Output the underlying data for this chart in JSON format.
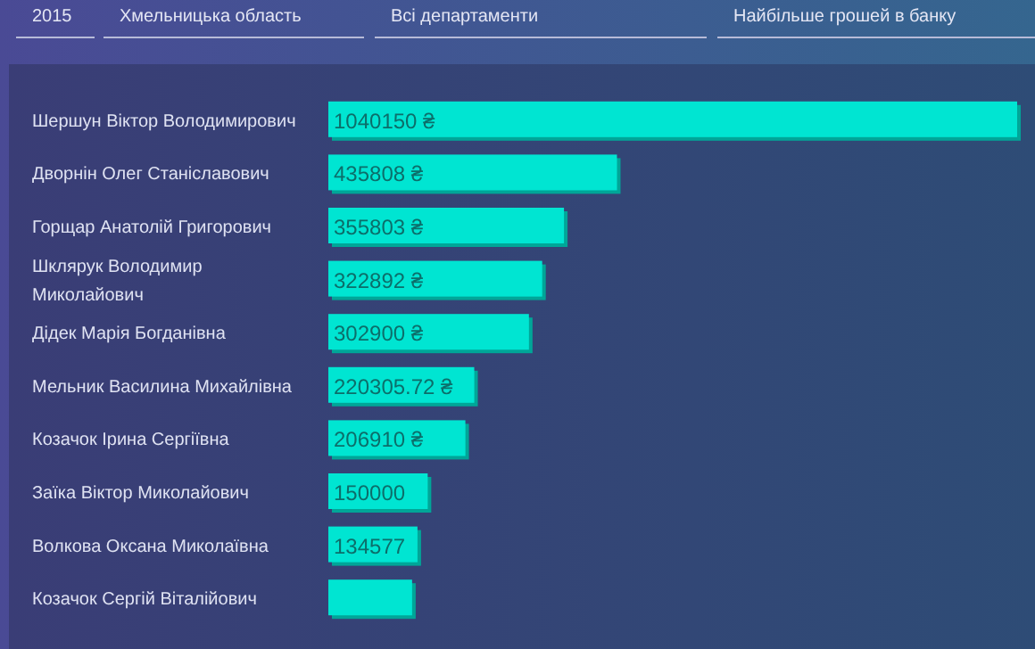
{
  "chart_data": {
    "type": "bar",
    "orientation": "horizontal",
    "annotations": [
      "2015",
      "Хмельницька область",
      "Всі департаменти",
      "Найбільше грошей в банку"
    ],
    "categories": [
      "Шершун Віктор Володимирович",
      "Дворнін Олег Станіславович",
      "Горщар Анатолій Григорович",
      "Шклярук Володимир Миколайович",
      "Дідек Марія Богданівна",
      "Мельник Василина Михайлівна",
      "Козачок Ірина Сергіївна",
      "Заїка Віктор Миколайович",
      "Волкова Оксана Миколаївна",
      "Козачок Сергій Віталійович"
    ],
    "values": [
      1040150,
      435808,
      355803,
      322892,
      302900,
      220305.72,
      206910,
      150000,
      134577,
      126460
    ],
    "value_labels": [
      "1040150 ₴",
      "435808 ₴",
      "355803 ₴",
      "322892 ₴",
      "302900 ₴",
      "220305.72 ₴",
      "206910 ₴",
      "150000",
      "134577",
      null
    ],
    "color": "#00e5d2"
  }
}
